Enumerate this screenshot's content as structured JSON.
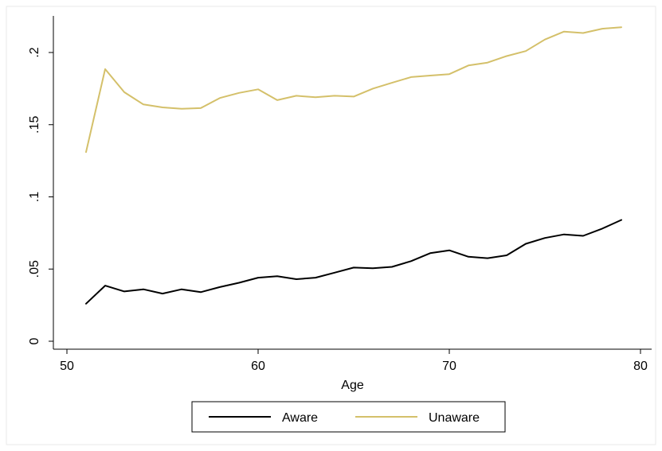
{
  "colors": {
    "background": "#ffffff",
    "aware": "#000000",
    "unaware": "#d4c06a"
  },
  "chart_data": {
    "type": "line",
    "title": "",
    "xlabel": "Age",
    "ylabel": "",
    "xlim": [
      50,
      80
    ],
    "ylim": [
      0,
      0.2
    ],
    "x_ticks": [
      50,
      60,
      70,
      80
    ],
    "x_tick_labels": [
      "50",
      "60",
      "70",
      "80"
    ],
    "y_ticks": [
      0,
      0.05,
      0.1,
      0.15,
      0.2
    ],
    "y_tick_labels": [
      "0",
      ".05",
      ".1",
      ".15",
      ".2"
    ],
    "grid": false,
    "legend_position": "bottom",
    "x": [
      51,
      52,
      53,
      54,
      55,
      56,
      57,
      58,
      59,
      60,
      61,
      62,
      63,
      64,
      65,
      66,
      67,
      68,
      69,
      70,
      71,
      72,
      73,
      74,
      75,
      76,
      77,
      78,
      79
    ],
    "series": [
      {
        "name": "Aware",
        "color": "#000000",
        "values": [
          0.026,
          0.0385,
          0.0345,
          0.036,
          0.033,
          0.036,
          0.034,
          0.0375,
          0.0405,
          0.044,
          0.045,
          0.043,
          0.044,
          0.0475,
          0.051,
          0.0505,
          0.0515,
          0.0555,
          0.061,
          0.063,
          0.0585,
          0.0575,
          0.0595,
          0.0675,
          0.0715,
          0.074,
          0.073,
          0.078,
          0.084
        ]
      },
      {
        "name": "Unaware",
        "color": "#d4c06a",
        "values": [
          0.131,
          0.1885,
          0.1725,
          0.164,
          0.162,
          0.161,
          0.1615,
          0.1685,
          0.172,
          0.1745,
          0.167,
          0.17,
          0.169,
          0.17,
          0.1695,
          0.175,
          0.179,
          0.183,
          0.184,
          0.185,
          0.191,
          0.193,
          0.1975,
          0.201,
          0.209,
          0.2145,
          0.2135,
          0.2165,
          0.2175
        ]
      }
    ]
  }
}
